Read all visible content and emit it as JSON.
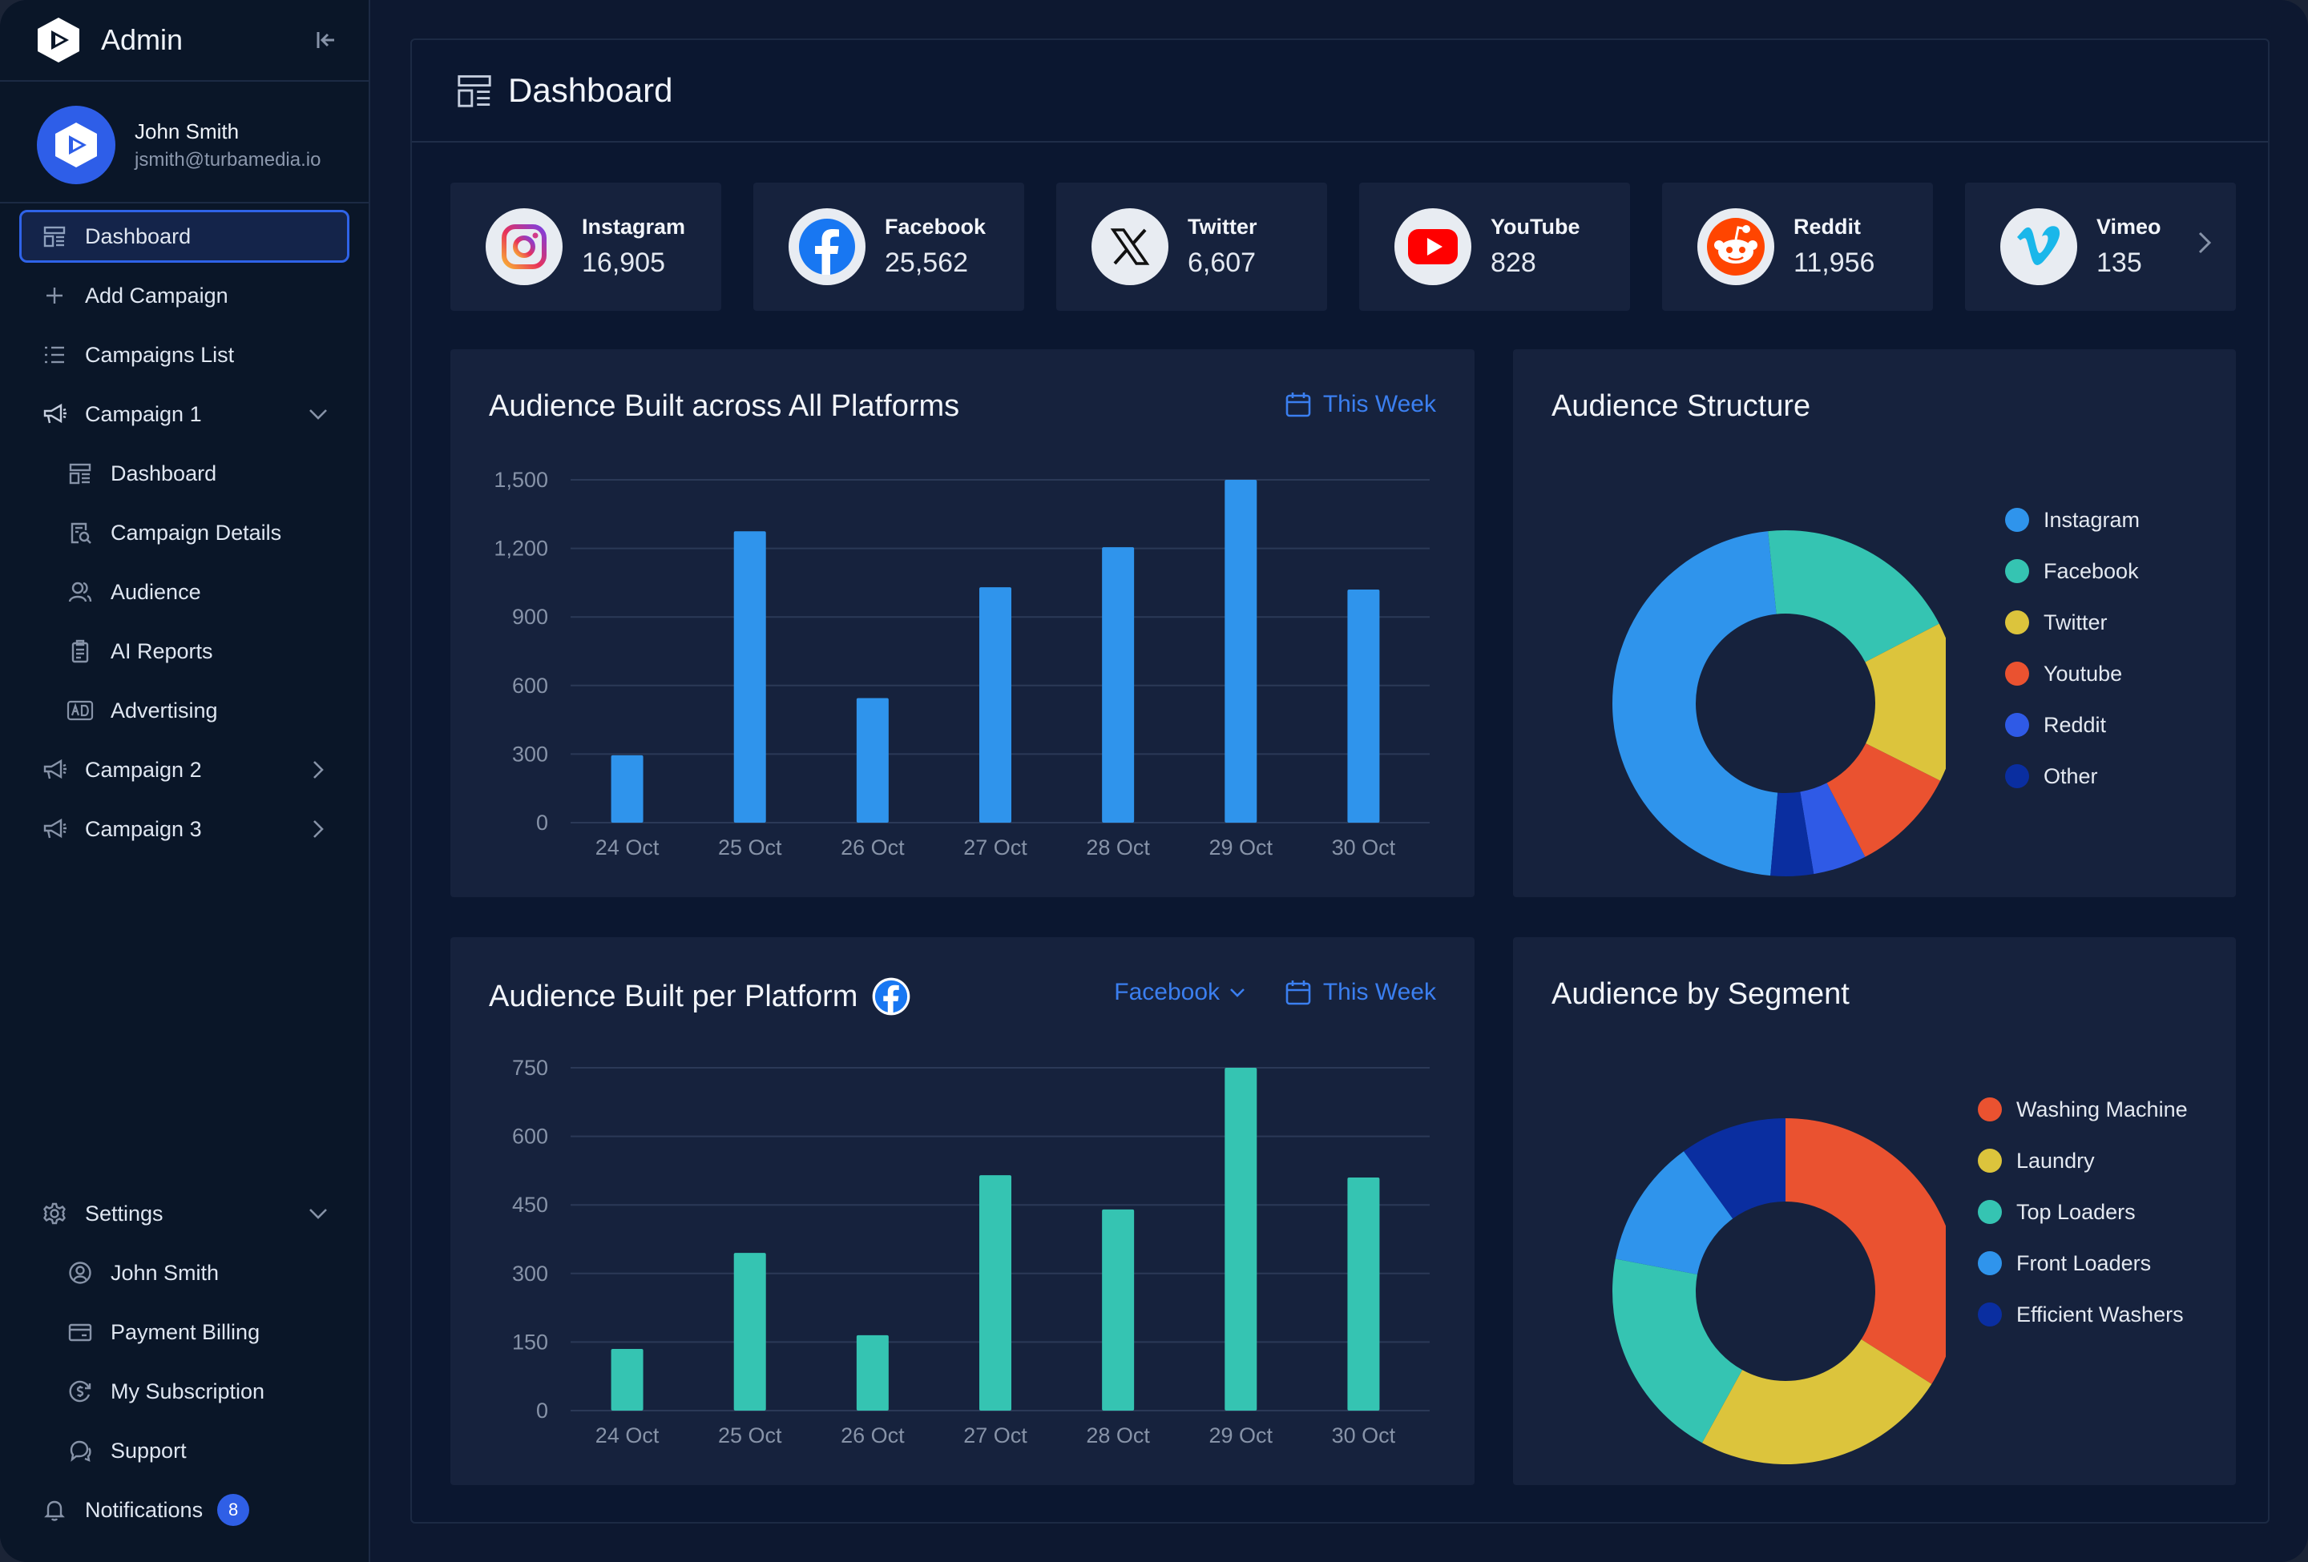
{
  "app": {
    "brand": "Admin"
  },
  "user": {
    "name": "John Smith",
    "email": "jsmith@turbamedia.io"
  },
  "nav": {
    "dashboard": "Dashboard",
    "add_campaign": "Add Campaign",
    "campaigns_list": "Campaigns List",
    "campaign1": "Campaign 1",
    "c1_items": [
      "Dashboard",
      "Campaign Details",
      "Audience",
      "AI Reports",
      "Advertising"
    ],
    "campaign2": "Campaign 2",
    "campaign3": "Campaign 3",
    "settings": "Settings",
    "settings_items": [
      "John Smith",
      "Payment Billing",
      "My Subscription",
      "Support"
    ],
    "notifications": "Notifications",
    "notifications_count": "8"
  },
  "page": {
    "title": "Dashboard"
  },
  "stats": [
    {
      "name": "Instagram",
      "value": "16,905",
      "icon": "instagram-icon"
    },
    {
      "name": "Facebook",
      "value": "25,562",
      "icon": "facebook-icon"
    },
    {
      "name": "Twitter",
      "value": "6,607",
      "icon": "x-twitter-icon"
    },
    {
      "name": "YouTube",
      "value": "828",
      "icon": "youtube-icon"
    },
    {
      "name": "Reddit",
      "value": "11,956",
      "icon": "reddit-icon"
    },
    {
      "name": "Vimeo",
      "value": "135",
      "icon": "vimeo-icon"
    }
  ],
  "filters": {
    "this_week": "This Week",
    "platform": "Facebook"
  },
  "colors": {
    "blue_bar": "#2f94ec",
    "teal_bar": "#35c4b2",
    "accent": "#3b7ff0"
  },
  "chart_data": [
    {
      "type": "bar",
      "title": "Audience Built across All Platforms",
      "categories": [
        "24 Oct",
        "25 Oct",
        "26 Oct",
        "27 Oct",
        "28 Oct",
        "29 Oct",
        "30 Oct"
      ],
      "values": [
        295,
        1275,
        545,
        1030,
        1205,
        1500,
        1020
      ],
      "yticks": [
        "0",
        "300",
        "600",
        "900",
        "1,200",
        "1,500"
      ],
      "ylim": [
        0,
        1500
      ],
      "color": "#2f94ec",
      "grid": true
    },
    {
      "type": "pie",
      "title": "Audience Structure",
      "labels": [
        "Instagram",
        "Facebook",
        "Twitter",
        "Youtube",
        "Reddit",
        "Other"
      ],
      "values": [
        47,
        19,
        15,
        10,
        5,
        4
      ],
      "colors": [
        "#2f94ec",
        "#35c4b2",
        "#dcc43c",
        "#ea5230",
        "#2f5ae6",
        "#0a2ea0"
      ],
      "legend": "right"
    },
    {
      "type": "bar",
      "title": "Audience Built per Platform",
      "categories": [
        "24 Oct",
        "25 Oct",
        "26 Oct",
        "27 Oct",
        "28 Oct",
        "29 Oct",
        "30 Oct"
      ],
      "values": [
        135,
        345,
        165,
        515,
        440,
        750,
        510
      ],
      "yticks": [
        "0",
        "150",
        "300",
        "450",
        "600",
        "750"
      ],
      "ylim": [
        0,
        750
      ],
      "color": "#35c4b2",
      "grid": true
    },
    {
      "type": "pie",
      "title": "Audience by Segment",
      "labels": [
        "Washing Machine",
        "Laundry",
        "Top Loaders",
        "Front Loaders",
        "Efficient Washers"
      ],
      "values": [
        34,
        24,
        20,
        12,
        10
      ],
      "colors": [
        "#ea5230",
        "#dcc43c",
        "#35c4b2",
        "#2f94ec",
        "#0a2ea0"
      ],
      "legend": "right"
    }
  ]
}
